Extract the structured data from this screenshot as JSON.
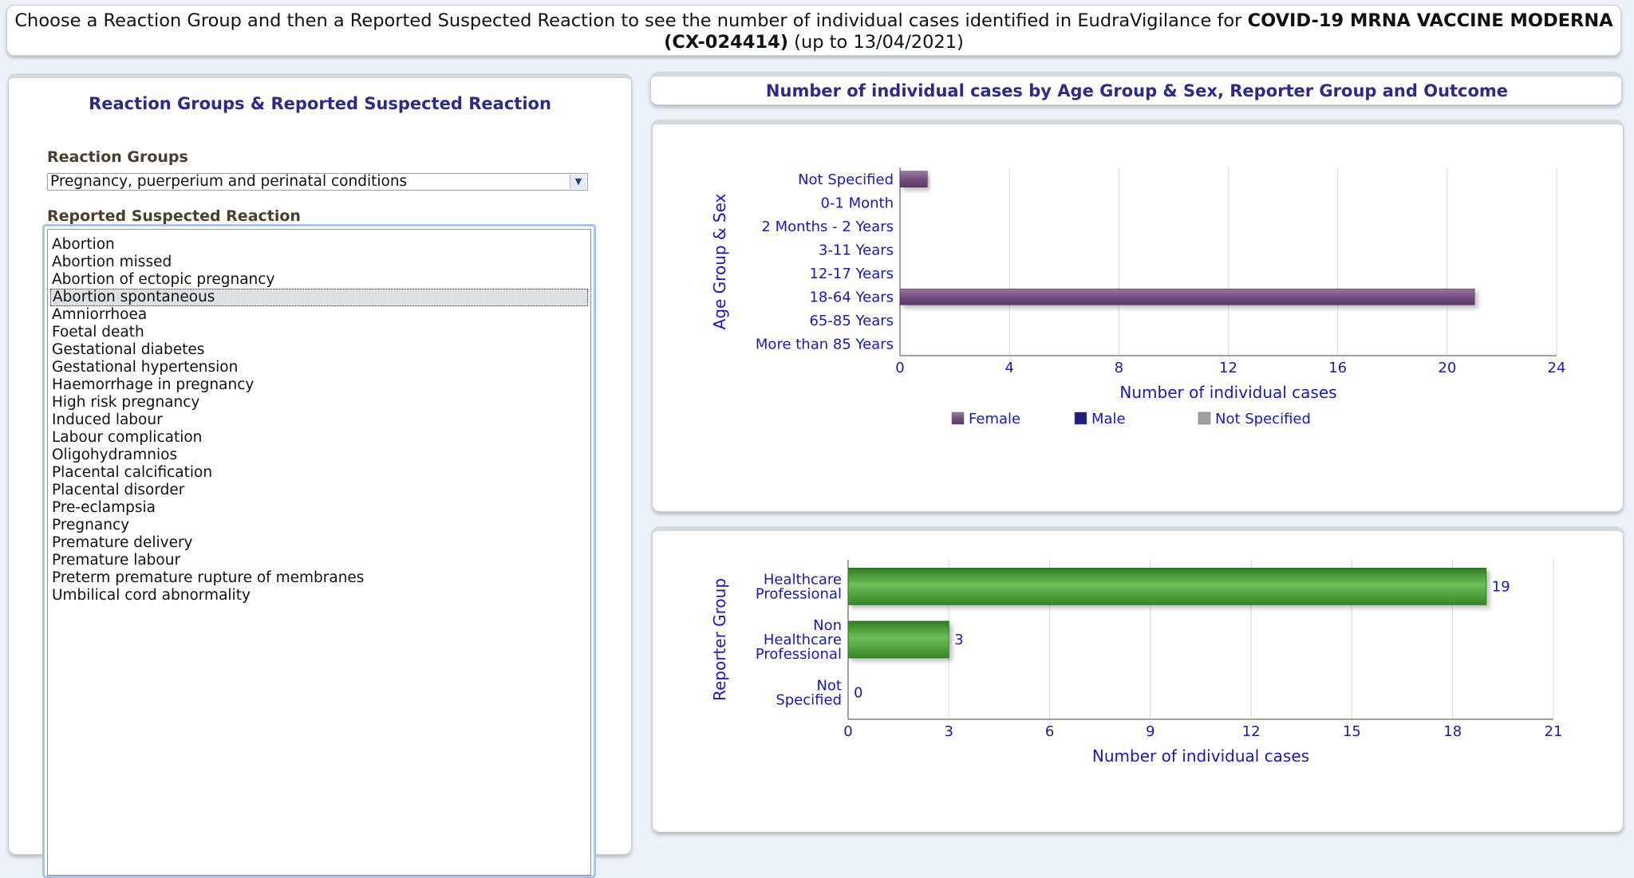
{
  "instruction": {
    "prefix": "Choose a Reaction Group and then a Reported Suspected Reaction to see the number of individual cases identified in EudraVigilance for ",
    "product": "COVID-19 MRNA VACCINE MODERNA (CX-024414)",
    "suffix": " (up to 13/04/2021)"
  },
  "left_panel": {
    "title": "Reaction Groups & Reported Suspected Reaction",
    "reaction_groups_label": "Reaction Groups",
    "reaction_group_selected": "Pregnancy, puerperium and perinatal conditions",
    "reported_reaction_label": "Reported Suspected Reaction",
    "reactions": [
      "Abortion",
      "Abortion missed",
      "Abortion of ectopic pregnancy",
      "Abortion spontaneous",
      "Amniorrhoea",
      "Foetal death",
      "Gestational diabetes",
      "Gestational hypertension",
      "Haemorrhage in pregnancy",
      "High risk pregnancy",
      "Induced labour",
      "Labour complication",
      "Oligohydramnios",
      "Placental calcification",
      "Placental disorder",
      "Pre-eclampsia",
      "Pregnancy",
      "Premature delivery",
      "Premature labour",
      "Preterm premature rupture of membranes",
      "Umbilical cord abnormality"
    ],
    "selected_reaction": "Abortion spontaneous"
  },
  "right_header": {
    "title": "Number of individual cases by Age Group & Sex, Reporter Group and Outcome"
  },
  "colors": {
    "female": "#74507f",
    "male": "#1c1f80",
    "not_specified": "#a0a0a0",
    "reporter_bar": "#4f9d3a",
    "axis_text": "#1a1ab0",
    "accent_title": "#2d2a8a"
  },
  "chart_data": [
    {
      "type": "bar",
      "orientation": "horizontal",
      "ylabel": "Age Group & Sex",
      "xlabel": "Number of individual cases",
      "categories": [
        "Not Specified",
        "0-1 Month",
        "2 Months - 2 Years",
        "3-11 Years",
        "12-17 Years",
        "18-64 Years",
        "65-85 Years",
        "More than 85 Years"
      ],
      "series": [
        {
          "name": "Female",
          "values": [
            1,
            0,
            0,
            0,
            0,
            21,
            0,
            0
          ]
        },
        {
          "name": "Male",
          "values": [
            0,
            0,
            0,
            0,
            0,
            0,
            0,
            0
          ]
        },
        {
          "name": "Not Specified",
          "values": [
            0,
            0,
            0,
            0,
            0,
            0,
            0,
            0
          ]
        }
      ],
      "xlim": [
        0,
        24
      ],
      "xticks": [
        0,
        4,
        8,
        12,
        16,
        20,
        24
      ],
      "grid": true,
      "legend": "bottom"
    },
    {
      "type": "bar",
      "orientation": "horizontal",
      "ylabel": "Reporter Group",
      "xlabel": "Number of individual cases",
      "categories": [
        [
          "Healthcare",
          "Professional"
        ],
        [
          "Non",
          "Healthcare",
          "Professional"
        ],
        [
          "Not",
          "Specified"
        ]
      ],
      "values": [
        19,
        3,
        0
      ],
      "data_labels": [
        "19",
        "3",
        "0"
      ],
      "xlim": [
        0,
        21
      ],
      "xticks": [
        0,
        3,
        6,
        9,
        12,
        15,
        18,
        21
      ],
      "grid": true
    }
  ]
}
